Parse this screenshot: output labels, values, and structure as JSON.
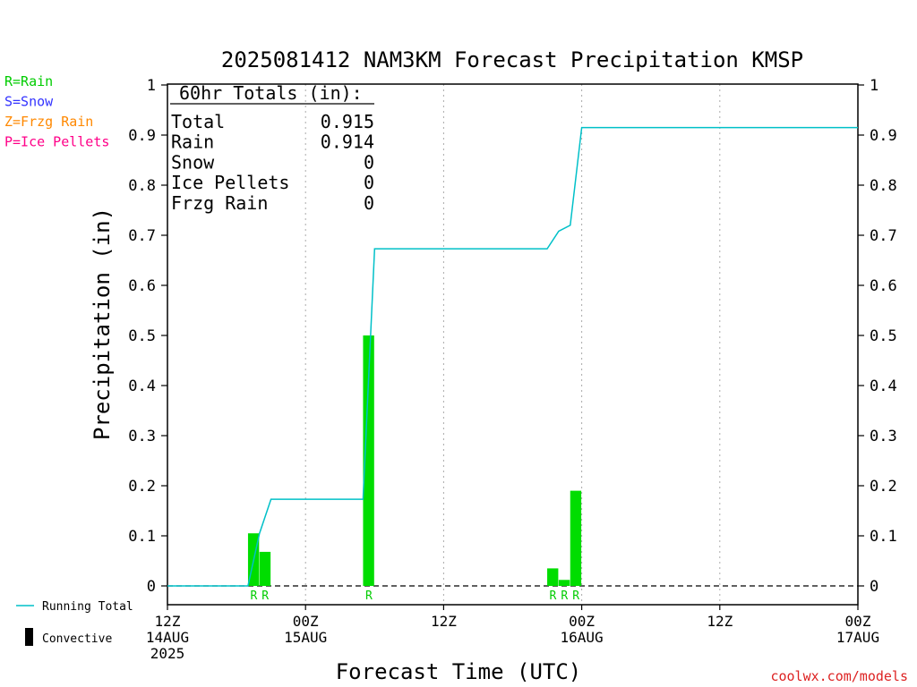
{
  "chart_data": {
    "type": "bar",
    "title": "2025081412 NAM3KM Forecast Precipitation KMSP",
    "ylabel": "Precipitation (in)",
    "xlabel": "Forecast Time (UTC)",
    "ylim": [
      0,
      1
    ],
    "xlim_hours": [
      0,
      60
    ],
    "yticks": [
      "0",
      "0.1",
      "0.2",
      "0.3",
      "0.4",
      "0.5",
      "0.6",
      "0.7",
      "0.8",
      "0.9",
      "1"
    ],
    "ytick_values": [
      0,
      0.1,
      0.2,
      0.3,
      0.4,
      0.5,
      0.6,
      0.7,
      0.8,
      0.9,
      1.0
    ],
    "xticks": [
      {
        "hour": 0,
        "lines": [
          "12Z",
          "14AUG",
          "2025"
        ]
      },
      {
        "hour": 12,
        "lines": [
          "00Z",
          "15AUG"
        ]
      },
      {
        "hour": 24,
        "lines": [
          "12Z"
        ]
      },
      {
        "hour": 36,
        "lines": [
          "00Z",
          "16AUG"
        ]
      },
      {
        "hour": 48,
        "lines": [
          "12Z"
        ]
      },
      {
        "hour": 60,
        "lines": [
          "00Z",
          "17AUG"
        ]
      }
    ],
    "grid": "vertical dotted at x ticks",
    "precip_bars": [
      {
        "hour": 8,
        "value": 0.105,
        "ptype": "R"
      },
      {
        "hour": 9,
        "value": 0.068,
        "ptype": "R"
      },
      {
        "hour": 18,
        "value": 0.5,
        "ptype": "R"
      },
      {
        "hour": 34,
        "value": 0.035,
        "ptype": "R"
      },
      {
        "hour": 35,
        "value": 0.012,
        "ptype": "R"
      },
      {
        "hour": 36,
        "value": 0.19,
        "ptype": "R"
      }
    ],
    "running_total": {
      "name": "Running Total",
      "x": [
        0,
        6,
        7,
        8,
        9,
        16,
        17,
        18,
        33,
        34,
        35,
        36,
        60
      ],
      "y": [
        0,
        0,
        0,
        0.105,
        0.173,
        0.173,
        0.173,
        0.673,
        0.673,
        0.708,
        0.72,
        0.915,
        0.915
      ]
    },
    "totals_box": {
      "header": "60hr Totals (in):",
      "rows": [
        {
          "label": "Total",
          "value": "0.915"
        },
        {
          "label": "Rain",
          "value": "0.914"
        },
        {
          "label": "Snow",
          "value": "0"
        },
        {
          "label": "Ice Pellets",
          "value": "0"
        },
        {
          "label": "Frzg Rain",
          "value": "0"
        }
      ]
    },
    "ptype_legend": [
      {
        "label": "R=Rain",
        "color": "#00cc00"
      },
      {
        "label": "S=Snow",
        "color": "#3333ff"
      },
      {
        "label": "Z=Frzg Rain",
        "color": "#ff8800"
      },
      {
        "label": "P=Ice Pellets",
        "color": "#ff0088"
      }
    ],
    "legend_bottom": [
      {
        "label": "Running Total",
        "symbol": "line"
      },
      {
        "label": "Convective",
        "symbol": "bar"
      }
    ],
    "credit": "coolwx.com/models",
    "colors": {
      "bar": "#00dd00",
      "ptype_label": "#00cc00",
      "running_total": "#00c0c8",
      "credit": "#dd2222"
    }
  }
}
